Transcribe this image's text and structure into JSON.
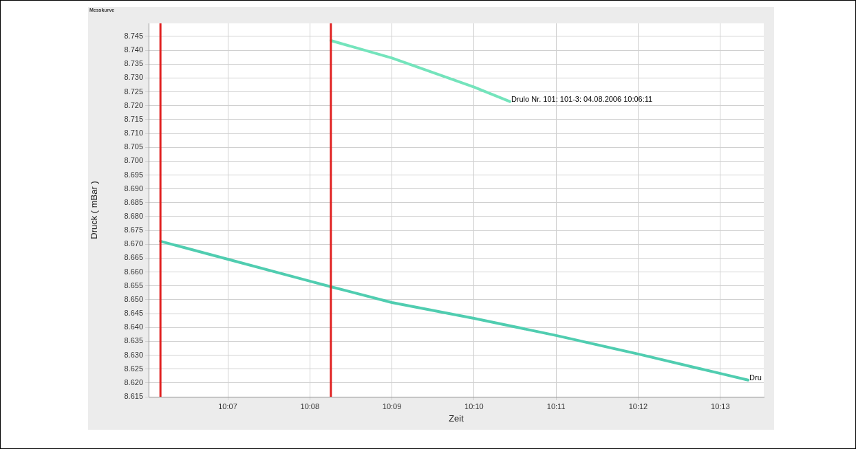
{
  "chart_data": {
    "type": "line",
    "title": "Messkurve",
    "xlabel": "Zeit",
    "ylabel": "Druck ( mBar )",
    "xlim": [
      10.1006,
      10.2255
    ],
    "ylim": [
      8.615,
      8.7497
    ],
    "xticks": [
      {
        "value": 10.116667,
        "label": "10:07"
      },
      {
        "value": 10.133333,
        "label": "10:08"
      },
      {
        "value": 10.15,
        "label": "10:09"
      },
      {
        "value": 10.166667,
        "label": "10:10"
      },
      {
        "value": 10.183333,
        "label": "10:11"
      },
      {
        "value": 10.2,
        "label": "10:12"
      },
      {
        "value": 10.216667,
        "label": "10:13"
      }
    ],
    "yticks": [
      8.615,
      {
        "value": 8.62,
        "label": "8.620"
      },
      8.625,
      {
        "value": 8.63,
        "label": "8.630"
      },
      8.635,
      {
        "value": 8.64,
        "label": "8.640"
      },
      8.645,
      {
        "value": 8.65,
        "label": "8.650"
      },
      8.655,
      {
        "value": 8.66,
        "label": "8.660"
      },
      8.665,
      {
        "value": 8.67,
        "label": "8.670"
      },
      8.675,
      {
        "value": 8.68,
        "label": "8.680"
      },
      8.685,
      {
        "value": 8.69,
        "label": "8.690"
      },
      8.695,
      {
        "value": 8.7,
        "label": "8.700"
      },
      8.705,
      {
        "value": 8.71,
        "label": "8.710"
      },
      8.715,
      {
        "value": 8.72,
        "label": "8.720"
      },
      8.725,
      {
        "value": 8.73,
        "label": "8.730"
      },
      8.735,
      {
        "value": 8.74,
        "label": "8.740"
      },
      8.745
    ],
    "series": [
      {
        "color": "#50cdb0",
        "x": [
          10.103,
          10.116667,
          10.133333,
          10.1376,
          10.15,
          10.166667,
          10.183333,
          10.2,
          10.216667,
          10.2223
        ],
        "values": [
          8.6711,
          8.6646,
          8.6567,
          8.6547,
          8.649,
          8.6433,
          8.6371,
          8.6304,
          8.6234,
          8.621
        ]
      },
      {
        "color": "#74e4bc",
        "x": [
          10.1376,
          10.15,
          10.166667,
          10.17393
        ],
        "values": [
          8.7435,
          8.7372,
          8.7267,
          8.7215
        ]
      }
    ],
    "ref_lines": [
      {
        "axis": "x",
        "value": 10.103,
        "color": "#e02020"
      },
      {
        "axis": "x",
        "value": 10.1376,
        "color": "#e02020"
      }
    ],
    "annotations": [
      {
        "text": "Drulo Nr. 101: 101-3: 04.08.2006 10:06:11",
        "x": 10.17393,
        "y": 8.7215
      },
      {
        "text": "Dru",
        "x": 10.2223,
        "y": 8.621
      }
    ],
    "grid": true,
    "marker": "none",
    "line_style": "solid",
    "legend": false
  }
}
